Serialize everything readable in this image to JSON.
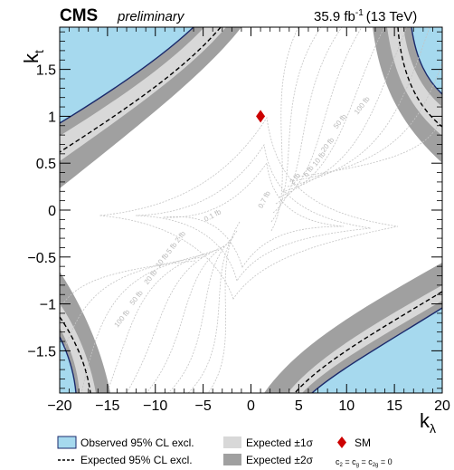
{
  "header": {
    "experiment": "CMS",
    "status": "preliminary",
    "lumi": "35.9 fb",
    "lumi_exp": "-1",
    "energy": "(13 TeV)"
  },
  "chart_data": {
    "type": "contour",
    "xlabel": "k",
    "xlabel_sub": "λ",
    "ylabel": "k",
    "ylabel_sub": "t",
    "xlim": [
      -20,
      20
    ],
    "ylim": [
      -1.95,
      1.95
    ],
    "x_ticks": [
      -20,
      -15,
      -10,
      -5,
      0,
      5,
      10,
      15,
      20
    ],
    "x_tick_labels": [
      "−20",
      "−15",
      "−10",
      "−5",
      "0",
      "5",
      "10",
      "15",
      "20"
    ],
    "y_ticks": [
      -1.5,
      -1,
      -0.5,
      0,
      0.5,
      1,
      1.5
    ],
    "y_tick_labels": [
      "−1.5",
      "−1",
      "−0.5",
      "0",
      "0.5",
      "1",
      "1.5"
    ],
    "sm_point": {
      "x": 1,
      "y": 1,
      "label": "SM"
    },
    "contour_labels": [
      {
        "text": "100 fb",
        "x": 11.8,
        "y": 1.1,
        "angle": -52
      },
      {
        "text": "50 fb",
        "x": 9.5,
        "y": 0.93,
        "angle": -52
      },
      {
        "text": "20 fb",
        "x": 8.2,
        "y": 0.68,
        "angle": -52
      },
      {
        "text": "10 fb",
        "x": 7.3,
        "y": 0.53,
        "angle": -52
      },
      {
        "text": "5 fb",
        "x": 6.2,
        "y": 0.4,
        "angle": -52
      },
      {
        "text": "2 fb",
        "x": 4.8,
        "y": 0.32,
        "angle": -52
      },
      {
        "text": "0.7 fb",
        "x": 1.6,
        "y": 0.1,
        "angle": -62
      },
      {
        "text": "0.1 fb",
        "x": -3.9,
        "y": -0.08,
        "angle": -28
      },
      {
        "text": "2 fb",
        "x": -7.2,
        "y": -0.3,
        "angle": -52
      },
      {
        "text": "5 fb",
        "x": -8.1,
        "y": -0.42,
        "angle": -52
      },
      {
        "text": "10 fb",
        "x": -9.1,
        "y": -0.55,
        "angle": -52
      },
      {
        "text": "20 fb",
        "x": -10.3,
        "y": -0.73,
        "angle": -52
      },
      {
        "text": "50 fb",
        "x": -11.8,
        "y": -0.95,
        "angle": -52
      },
      {
        "text": "100 fb",
        "x": -13.3,
        "y": -1.17,
        "angle": -52
      }
    ],
    "legend": [
      {
        "label": "Observed 95% CL excl.",
        "style": "observed"
      },
      {
        "label": "Expected ±1σ",
        "style": "band1"
      },
      {
        "label": "SM",
        "style": "sm"
      },
      {
        "label": "Expected 95% CL excl.",
        "style": "expected"
      },
      {
        "label": "Expected ±2σ",
        "style": "band2"
      },
      {
        "label": "c2 = cg = c2g = 0",
        "style": "note"
      }
    ],
    "colors": {
      "observed_fill": "#a6d9ee",
      "observed_line": "#1a2a6c",
      "band1": "#d8d8d8",
      "band2": "#a0a0a0",
      "contour": "#c4c4c4",
      "sm": "#cc0000"
    }
  }
}
